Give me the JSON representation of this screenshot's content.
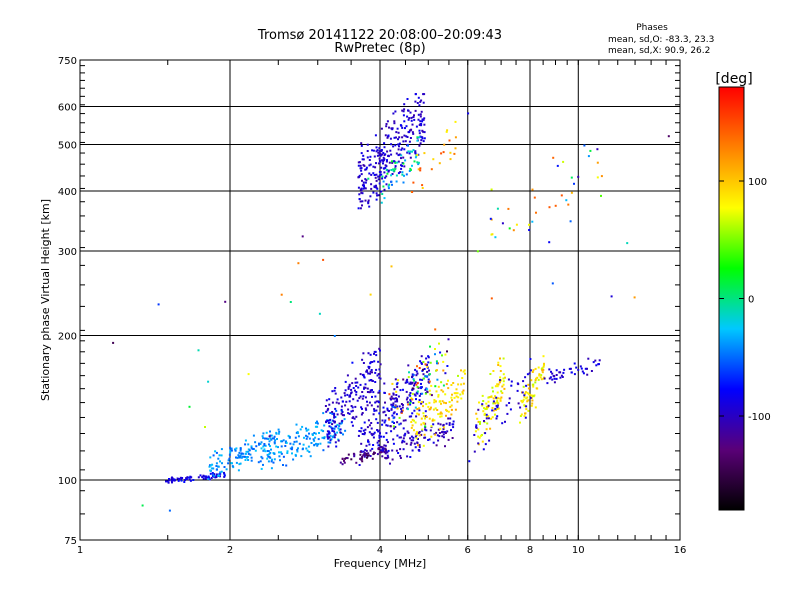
{
  "chart_data": {
    "type": "scatter",
    "title": "Tromsø 20141122 20:08:00–20:09:43",
    "subtitle": "RwPretec (8p)",
    "xlabel": "Frequency [MHz]",
    "ylabel": "Stationary phase Virtual Height [km]",
    "x_scale": "log",
    "y_scale": "log",
    "xlim": [
      1,
      16
    ],
    "ylim": [
      75,
      750
    ],
    "x_ticks": [
      1,
      2,
      4,
      6,
      8,
      10,
      16
    ],
    "x_tick_labels": [
      "1",
      "2",
      "4",
      "6",
      "8",
      "10",
      "16"
    ],
    "y_ticks": [
      75,
      100,
      200,
      300,
      400,
      500,
      600,
      750
    ],
    "y_tick_labels": [
      "75",
      "100",
      "200",
      "300",
      "400",
      "500",
      "600",
      "750"
    ],
    "grid": true,
    "info": {
      "title": "Phases",
      "line1": "mean, sd,O:  -83.3, 23.3",
      "line2": "mean, sd,X:  90.9, 26.2"
    },
    "colorbar": {
      "label": "[deg]",
      "range": [
        -180,
        180
      ],
      "ticks": [
        100,
        0,
        -100
      ],
      "tick_labels": [
        "100",
        "0",
        "-100"
      ],
      "colors": [
        "#000000",
        "#5a0078",
        "#0000ff",
        "#00c8ff",
        "#00ff00",
        "#ffff00",
        "#ff8000",
        "#ff0000"
      ]
    },
    "clusters": [
      {
        "f": [
          1.48,
          1.95
        ],
        "h": [
          99,
          104
        ],
        "phase": [
          -100,
          -70
        ],
        "n": 70
      },
      {
        "f": [
          1.8,
          2.5
        ],
        "h": [
          101,
          128
        ],
        "phase": [
          -55,
          -25
        ],
        "n": 130
      },
      {
        "f": [
          2.3,
          3.4
        ],
        "h": [
          106,
          140
        ],
        "phase": [
          -55,
          -20
        ],
        "n": 160
      },
      {
        "f": [
          3.1,
          4.0
        ],
        "h": [
          118,
          190
        ],
        "phase": [
          -110,
          -80
        ],
        "n": 190
      },
      {
        "f": [
          3.6,
          5.0
        ],
        "h": [
          108,
          182
        ],
        "phase": [
          -110,
          -75
        ],
        "n": 230
      },
      {
        "f": [
          3.3,
          4.1
        ],
        "h": [
          108,
          118
        ],
        "phase": [
          -150,
          -110
        ],
        "n": 50
      },
      {
        "f": [
          4.0,
          5.6
        ],
        "h": [
          108,
          135
        ],
        "phase": [
          -120,
          -80
        ],
        "n": 110
      },
      {
        "f": [
          4.6,
          5.9
        ],
        "h": [
          118,
          170
        ],
        "phase": [
          70,
          115
        ],
        "n": 110
      },
      {
        "f": [
          4.1,
          5.5
        ],
        "h": [
          130,
          200
        ],
        "phase": [
          -150,
          170
        ],
        "n": 90
      },
      {
        "f": [
          6.2,
          7.1
        ],
        "h": [
          118,
          180
        ],
        "phase": [
          60,
          110
        ],
        "n": 90
      },
      {
        "f": [
          7.6,
          8.5
        ],
        "h": [
          128,
          182
        ],
        "phase": [
          60,
          110
        ],
        "n": 70
      },
      {
        "f": [
          6.0,
          8.0
        ],
        "h": [
          110,
          180
        ],
        "phase": [
          -110,
          -80
        ],
        "n": 55
      },
      {
        "f": [
          8.5,
          11.0
        ],
        "h": [
          160,
          180
        ],
        "phase": [
          -110,
          -80
        ],
        "n": 45
      },
      {
        "f": [
          3.6,
          4.9
        ],
        "h": [
          370,
          640
        ],
        "phase": [
          -110,
          -80
        ],
        "n": 300
      },
      {
        "f": [
          4.0,
          4.8
        ],
        "h": [
          380,
          520
        ],
        "phase": [
          -50,
          20
        ],
        "n": 50
      },
      {
        "f": [
          4.6,
          5.7
        ],
        "h": [
          400,
          560
        ],
        "phase": [
          80,
          150
        ],
        "n": 25
      },
      {
        "f": [
          6.2,
          11.5
        ],
        "h": [
          300,
          520
        ],
        "phase": [
          -110,
          150
        ],
        "n": 35
      },
      {
        "f": [
          1.0,
          16.0
        ],
        "h": [
          85,
          700
        ],
        "phase": [
          -150,
          150
        ],
        "n": 40
      }
    ]
  }
}
